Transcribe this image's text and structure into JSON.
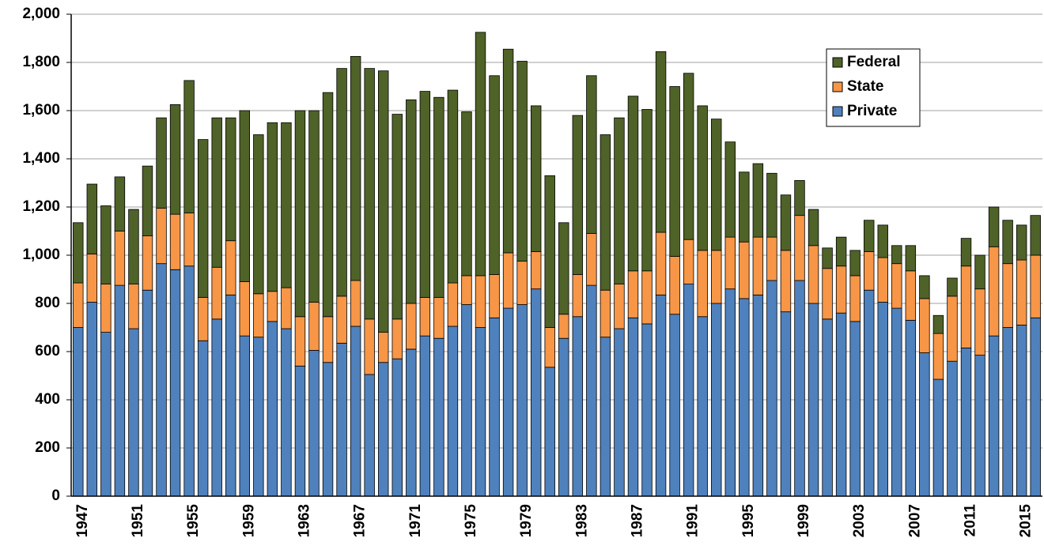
{
  "chart_data": {
    "type": "stacked_bar",
    "categories": [
      "1947",
      null,
      null,
      null,
      "1951",
      null,
      null,
      null,
      "1955",
      null,
      null,
      null,
      "1959",
      null,
      null,
      null,
      "1963",
      null,
      null,
      null,
      "1967",
      null,
      null,
      null,
      "1971",
      null,
      null,
      null,
      "1975",
      null,
      null,
      null,
      "1979",
      null,
      null,
      null,
      "1983",
      null,
      null,
      null,
      "1987",
      null,
      null,
      null,
      "1991",
      null,
      null,
      null,
      "1995",
      null,
      null,
      null,
      "1999",
      null,
      null,
      null,
      "2003",
      null,
      null,
      null,
      "2007",
      null,
      null,
      null,
      "2011",
      null,
      null,
      null,
      "2015",
      null
    ],
    "series": [
      {
        "name": "Private",
        "color": "#4f81bd",
        "values": [
          700,
          805,
          680,
          875,
          695,
          855,
          965,
          940,
          955,
          645,
          735,
          835,
          665,
          660,
          725,
          695,
          540,
          605,
          555,
          635,
          705,
          505,
          555,
          570,
          610,
          665,
          655,
          705,
          795,
          700,
          740,
          780,
          795,
          860,
          535,
          655,
          745,
          875,
          660,
          695,
          740,
          715,
          835,
          755,
          880,
          745,
          800,
          860,
          820,
          835,
          895,
          765,
          895,
          800,
          735,
          760,
          725,
          855,
          805,
          780,
          730,
          595,
          485,
          560,
          615,
          585,
          665,
          700,
          710,
          740
        ]
      },
      {
        "name": "State",
        "color": "#f79646",
        "values": [
          185,
          200,
          200,
          225,
          185,
          225,
          230,
          230,
          220,
          180,
          215,
          225,
          225,
          180,
          125,
          170,
          205,
          200,
          190,
          195,
          190,
          230,
          125,
          165,
          190,
          160,
          170,
          180,
          120,
          215,
          180,
          230,
          180,
          155,
          165,
          100,
          175,
          215,
          195,
          185,
          195,
          220,
          260,
          240,
          185,
          275,
          220,
          215,
          235,
          240,
          180,
          255,
          270,
          240,
          210,
          195,
          190,
          160,
          185,
          185,
          205,
          225,
          190,
          270,
          340,
          275,
          370,
          265,
          270,
          260
        ]
      },
      {
        "name": "Federal",
        "color": "#4f6228",
        "values": [
          250,
          290,
          325,
          225,
          310,
          290,
          375,
          455,
          550,
          655,
          620,
          510,
          710,
          660,
          700,
          685,
          855,
          795,
          930,
          945,
          930,
          1040,
          1085,
          850,
          845,
          855,
          830,
          800,
          680,
          1010,
          825,
          845,
          830,
          605,
          630,
          380,
          660,
          655,
          645,
          690,
          725,
          670,
          750,
          705,
          690,
          600,
          545,
          395,
          290,
          305,
          265,
          230,
          145,
          150,
          85,
          120,
          105,
          130,
          135,
          75,
          105,
          95,
          75,
          75,
          115,
          140,
          165,
          180,
          145,
          165
        ]
      }
    ],
    "ylim": [
      0,
      2000
    ],
    "yticks": [
      0,
      200,
      400,
      600,
      800,
      {
        "value": 1000,
        "label": "1,000"
      },
      {
        "value": 1200,
        "label": "1,200"
      },
      {
        "value": 1400,
        "label": "1,400"
      },
      {
        "value": 1600,
        "label": "1,600"
      },
      {
        "value": 1800,
        "label": "1,800"
      },
      {
        "value": 2000,
        "label": "2,000"
      }
    ],
    "grid": true,
    "legend": "upper right"
  }
}
